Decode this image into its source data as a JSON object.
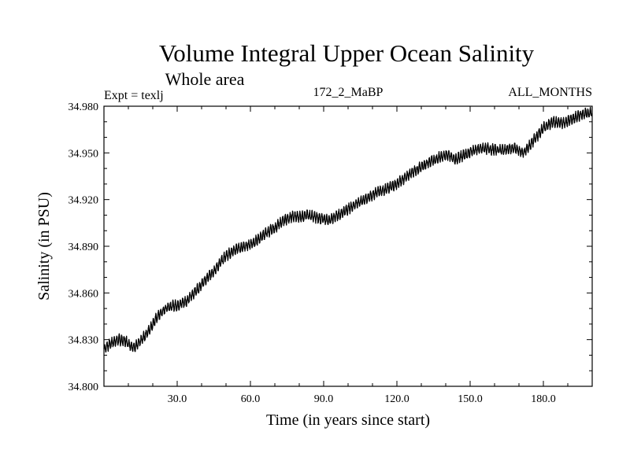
{
  "chart_data": {
    "type": "line",
    "title": "Volume Integral Upper Ocean Salinity",
    "subtitle": "Whole area",
    "experiment": "Expt = texlj",
    "run_id": "172_2_MaBP",
    "period": "ALL_MONTHS",
    "xlabel": "Time (in years since start)",
    "ylabel": "Salinity (in PSU)",
    "xlim": [
      0,
      200
    ],
    "ylim": [
      34.8,
      34.98
    ],
    "x_ticks": [
      30,
      60,
      90,
      120,
      150,
      180
    ],
    "x_tick_labels": [
      "30.0",
      "60.0",
      "90.0",
      "120.0",
      "150.0",
      "180.0"
    ],
    "y_ticks": [
      34.8,
      34.83,
      34.86,
      34.89,
      34.92,
      34.95,
      34.98
    ],
    "y_tick_labels": [
      "34.800",
      "34.830",
      "34.860",
      "34.890",
      "34.920",
      "34.950",
      "34.980"
    ],
    "grid": false,
    "series": [
      {
        "name": "Salinity",
        "color": "#000000",
        "x": [
          0,
          3,
          6,
          9,
          12,
          14,
          18,
          22,
          26,
          30,
          34,
          38,
          42,
          46,
          50,
          54,
          58,
          62,
          66,
          70,
          74,
          77,
          80,
          84,
          88,
          92,
          96,
          100,
          104,
          108,
          112,
          116,
          120,
          124,
          128,
          132,
          136,
          140,
          144,
          148,
          152,
          156,
          160,
          164,
          168,
          172,
          176,
          180,
          184,
          188,
          192,
          196,
          200
        ],
        "values": [
          34.824,
          34.828,
          34.83,
          34.829,
          34.825,
          34.827,
          34.835,
          34.845,
          34.851,
          34.852,
          34.855,
          34.862,
          34.869,
          34.876,
          34.884,
          34.888,
          34.89,
          34.893,
          34.898,
          34.902,
          34.907,
          34.909,
          34.909,
          34.91,
          34.908,
          34.907,
          34.91,
          34.914,
          34.918,
          34.921,
          34.925,
          34.927,
          34.93,
          34.935,
          34.939,
          34.943,
          34.946,
          34.949,
          34.946,
          34.949,
          34.952,
          34.953,
          34.952,
          34.952,
          34.953,
          34.95,
          34.958,
          34.966,
          34.97,
          34.969,
          34.972,
          34.975,
          34.976
        ],
        "variability_amplitude": 0.0028
      }
    ]
  }
}
